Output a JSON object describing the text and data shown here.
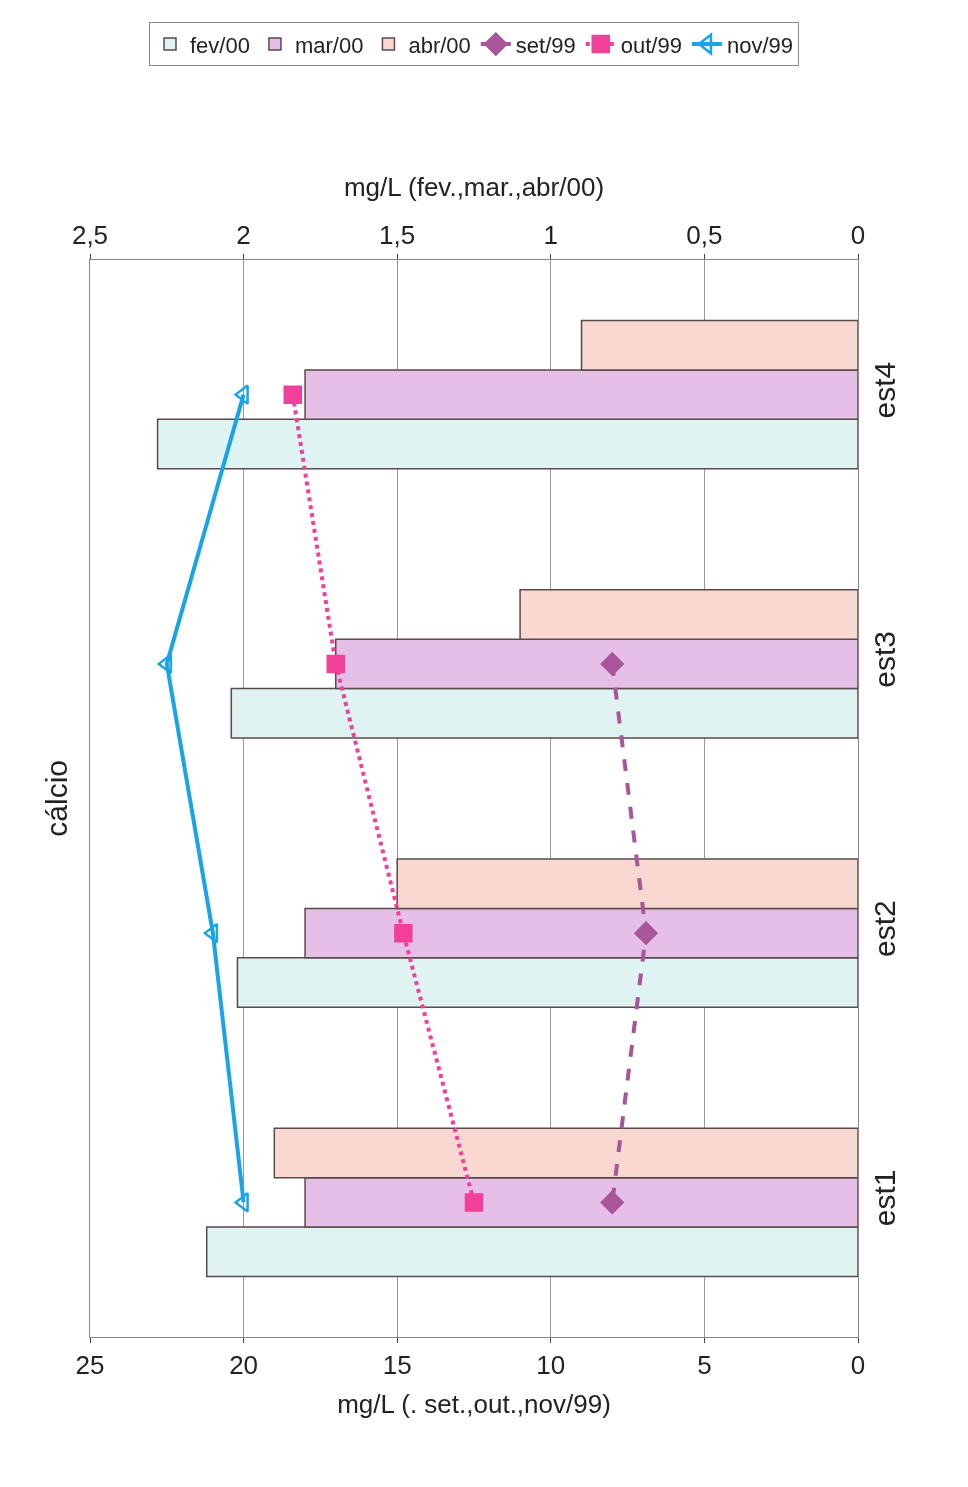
{
  "chart_data": {
    "type": "bar",
    "orientation": "horizontal",
    "title": "cálcio",
    "categories": [
      "est4",
      "est3",
      "est2",
      "est1"
    ],
    "series": [
      {
        "name": "fev/00",
        "axis": "x2",
        "color": "#dff3f3",
        "values": [
          2.28,
          2.04,
          2.02,
          2.12
        ]
      },
      {
        "name": "mar/00",
        "axis": "x2",
        "color": "#e6bfe6",
        "values": [
          1.8,
          1.7,
          1.8,
          1.8
        ]
      },
      {
        "name": "abr/00",
        "axis": "x2",
        "color": "#f8d8d0",
        "values": [
          0.9,
          1.1,
          1.5,
          1.9
        ]
      },
      {
        "name": "set/99",
        "type": "line",
        "color": "#a8559a",
        "marker": "diamond",
        "line_style": "dashed",
        "values": [
          null,
          8,
          6.9,
          8
        ]
      },
      {
        "name": "out/99",
        "type": "line",
        "color": "#f0409a",
        "marker": "square",
        "line_style": "dotted",
        "values": [
          18.4,
          17,
          14.8,
          12.5
        ]
      },
      {
        "name": "nov/99",
        "type": "line",
        "color": "#1ba3e8",
        "marker": "triangle",
        "line_style": "solid",
        "values": [
          20,
          22.5,
          21,
          20
        ]
      }
    ],
    "xlabel": "mg/L (. set.,out.,nov/99)",
    "xlim": [
      25,
      0
    ],
    "xticks": [
      0,
      5,
      10,
      15,
      20,
      25
    ],
    "x2label": "mg/L (fev.,mar.,abr/00)",
    "x2lim": [
      2.5,
      0
    ],
    "x2ticks": [
      0,
      {
        "value": 0.5,
        "label": "0,5"
      },
      1,
      {
        "value": 1.5,
        "label": "1,5"
      },
      2,
      {
        "value": 2.5,
        "label": "2,5"
      }
    ],
    "grid": "x",
    "legend": "top"
  }
}
